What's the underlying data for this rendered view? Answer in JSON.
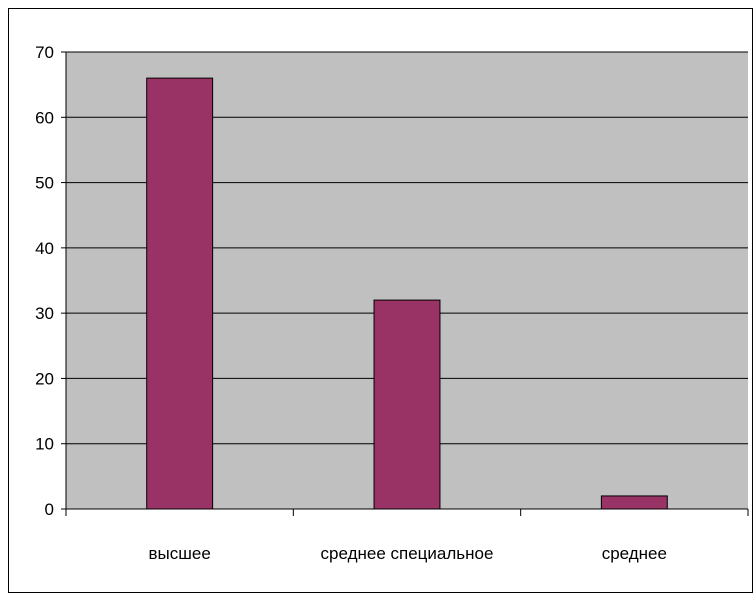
{
  "chart_data": {
    "type": "bar",
    "categories": [
      "высшее",
      "среднее специальное",
      "среднее"
    ],
    "values": [
      66,
      32,
      2
    ],
    "title": "",
    "xlabel": "",
    "ylabel": "",
    "ylim": [
      0,
      70
    ],
    "yticks": [
      0,
      10,
      20,
      30,
      40,
      50,
      60,
      70
    ],
    "grid": true,
    "legend": "none",
    "colors": {
      "bar": "#993366",
      "plot_background": "#c0c0c0",
      "gridline": "#000000"
    }
  }
}
